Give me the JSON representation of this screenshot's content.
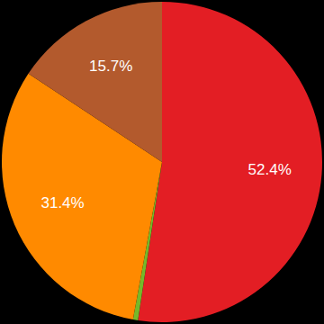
{
  "chart_data": {
    "type": "pie",
    "values": [
      52.4,
      0.5,
      31.4,
      15.7
    ],
    "value_labels": [
      "52.4%",
      null,
      "31.4%",
      "15.7%"
    ],
    "colors": [
      "#e31e24",
      "#76b82a",
      "#ff8a00",
      "#b35a2d"
    ],
    "data_labels": true
  }
}
